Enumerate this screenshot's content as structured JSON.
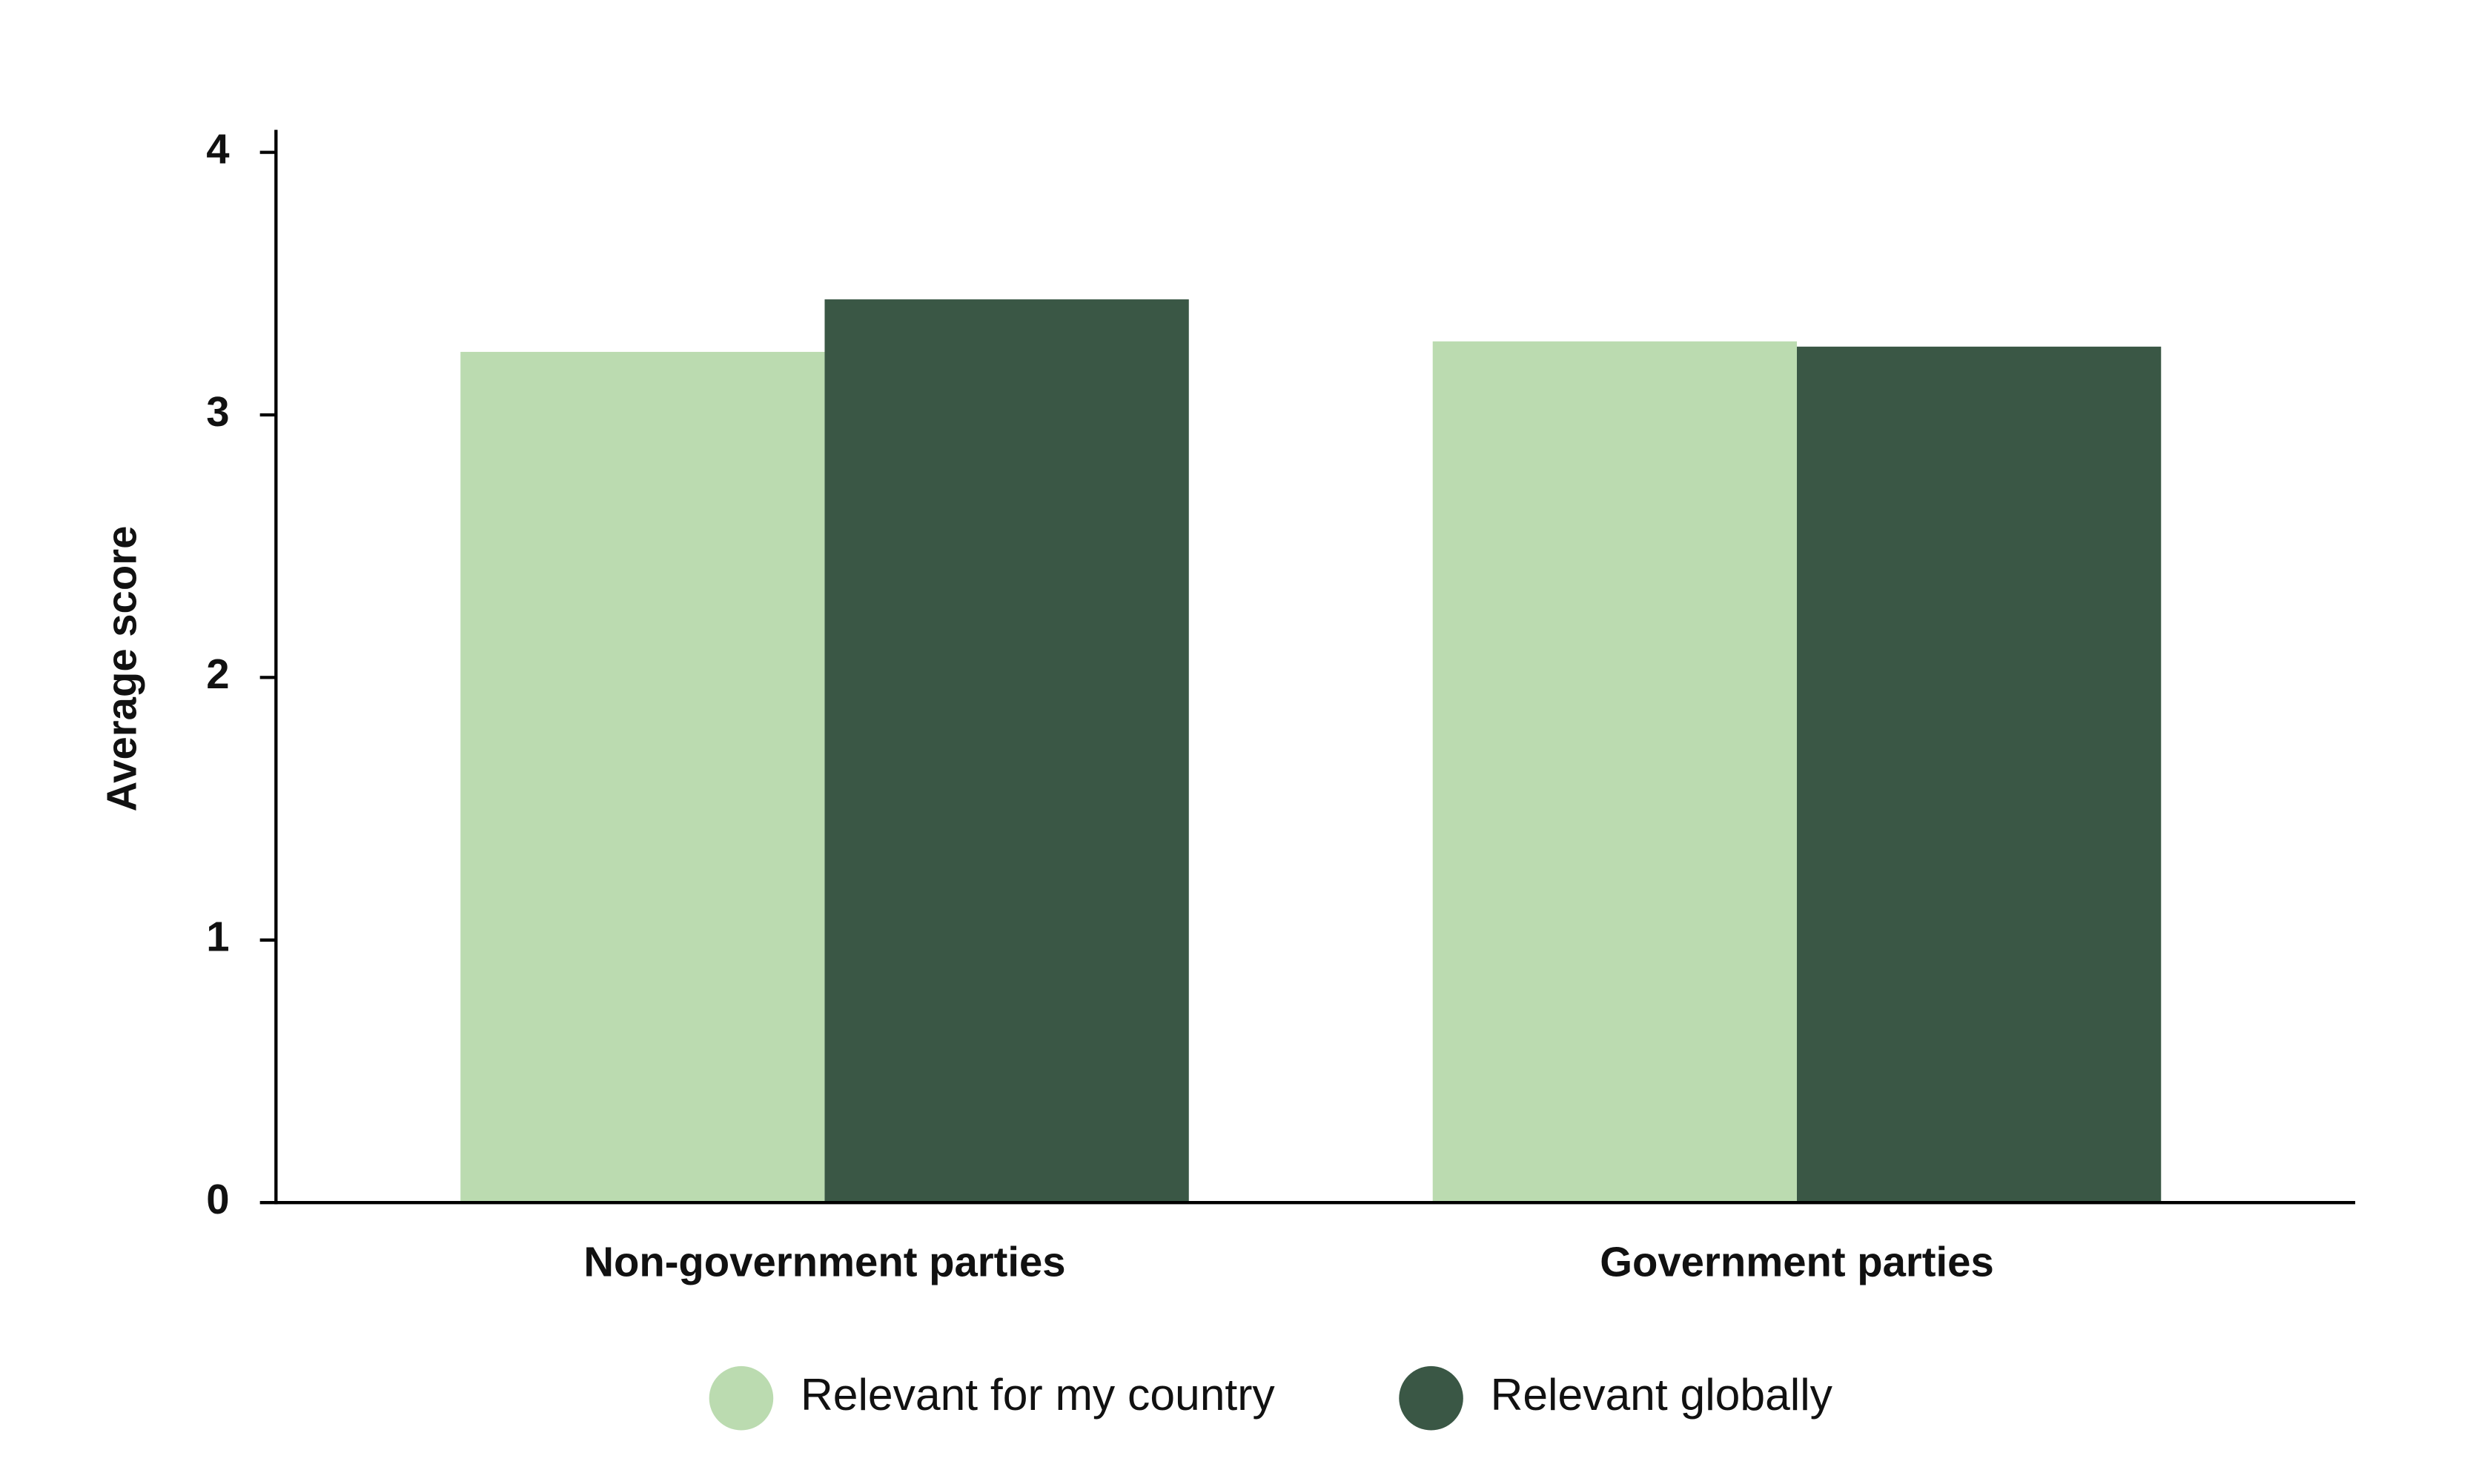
{
  "chart_data": {
    "type": "bar",
    "y_label": "Average score",
    "categories": [
      "Non-government parties",
      "Government parties"
    ],
    "series": [
      {
        "name": "Relevant for my country",
        "color": "#bbdbb0",
        "values": [
          3.24,
          3.28
        ]
      },
      {
        "name": "Relevant globally",
        "color": "#3a5745",
        "values": [
          3.44,
          3.26
        ]
      }
    ],
    "ylim": [
      0,
      4
    ],
    "yticks": [
      0,
      1,
      2,
      3,
      4
    ],
    "grid": false
  }
}
